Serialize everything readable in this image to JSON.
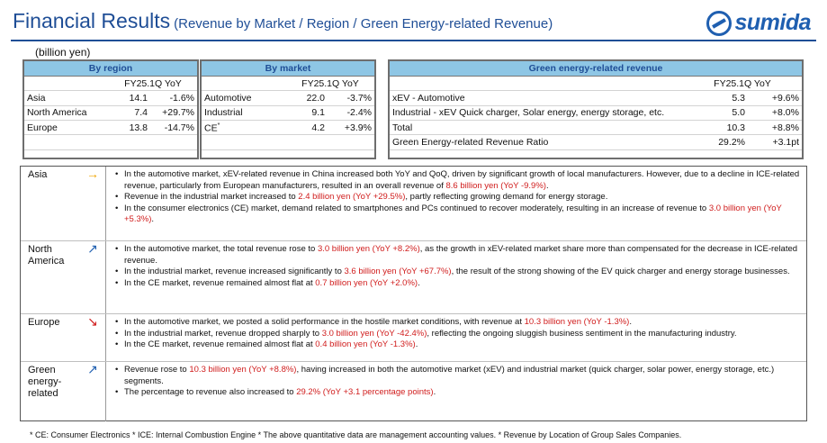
{
  "header": {
    "title": "Financial Results",
    "subtitle": "(Revenue by Market / Region / Green Energy-related Revenue)",
    "logo_text": "sumida"
  },
  "unit": "(billion yen)",
  "region_table": {
    "title": "By region",
    "col_header": "FY25.1Q YoY",
    "rows": [
      {
        "name": "Asia",
        "value": "14.1",
        "yoy": "-1.6%"
      },
      {
        "name": "North America",
        "value": "7.4",
        "yoy": "+29.7%"
      },
      {
        "name": "Europe",
        "value": "13.8",
        "yoy": "-14.7%"
      },
      {
        "name": "",
        "value": "",
        "yoy": ""
      }
    ]
  },
  "market_table": {
    "title": "By market",
    "col_header": "FY25.1Q YoY",
    "rows": [
      {
        "name": "Automotive",
        "value": "22.0",
        "yoy": "-3.7%"
      },
      {
        "name": "Industrial",
        "value": "9.1",
        "yoy": "-2.4%"
      },
      {
        "name": "CE",
        "sup": "*",
        "value": "4.2",
        "yoy": "+3.9%"
      },
      {
        "name": "",
        "value": "",
        "yoy": ""
      }
    ]
  },
  "green_table": {
    "title": "Green energy-related revenue",
    "col_header": "FY25.1Q YoY",
    "rows": [
      {
        "name": "xEV - Automotive",
        "value": "5.3",
        "yoy": "+9.6%"
      },
      {
        "name": "Industrial - xEV Quick charger, Solar energy, energy storage, etc.",
        "value": "5.0",
        "yoy": "+8.0%"
      },
      {
        "name": "Total",
        "value": "10.3",
        "yoy": "+8.8%"
      },
      {
        "name": "Green Energy-related Revenue Ratio",
        "value": "29.2%",
        "yoy": "+3.1pt"
      }
    ]
  },
  "details": [
    {
      "label": "Asia",
      "arrow": "→",
      "arrow_color": "#f0a500",
      "bullets": [
        {
          "pre": "In the automotive market, xEV-related revenue in China increased both YoY and QoQ, driven by significant growth of local manufacturers. However, due to a decline in ICE-related revenue, particularly from European manufacturers, resulted in an overall revenue of ",
          "hl": "8.6 billion yen (YoY -9.9%)",
          "post": "."
        },
        {
          "pre": "Revenue in the industrial market increased to ",
          "hl": "2.4 billion yen (YoY +29.5%)",
          "post": ", partly reflecting growing demand for energy storage."
        },
        {
          "pre": "In the consumer electronics (CE) market, demand related to smartphones and PCs continued to recover moderately, resulting in an increase of revenue to ",
          "hl": "3.0 billion yen (YoY +5.3%)",
          "post": "."
        }
      ]
    },
    {
      "label": "North America",
      "arrow": "↗",
      "arrow_color": "#1f5fb0",
      "bullets": [
        {
          "pre": "In the automotive market, the total revenue rose to ",
          "hl": "3.0 billion yen (YoY +8.2%)",
          "post": ", as the growth in xEV-related market share more than compensated for the decrease in ICE-related revenue."
        },
        {
          "pre": "In the industrial market, revenue increased significantly to ",
          "hl": "3.6 billion yen (YoY +67.7%)",
          "post": ", the result of the strong showing of the EV quick charger and energy storage businesses."
        },
        {
          "pre": "In the CE market, revenue remained almost flat at ",
          "hl": "0.7 billion yen (YoY +2.0%)",
          "post": "."
        }
      ]
    },
    {
      "label": "Europe",
      "arrow": "↘",
      "arrow_color": "#d01c1c",
      "bullets": [
        {
          "pre": "In the automotive market, we posted a solid performance in the hostile market conditions, with revenue at ",
          "hl": "10.3 billion yen (YoY -1.3%)",
          "post": "."
        },
        {
          "pre": "In the industrial market, revenue dropped sharply to ",
          "hl": "3.0 billion yen (YoY -42.4%)",
          "post": ", reflecting the ongoing sluggish business sentiment in the manufacturing industry."
        },
        {
          "pre": "In the CE market, revenue remained almost flat at ",
          "hl": "0.4 billion yen (YoY -1.3%)",
          "post": "."
        }
      ]
    },
    {
      "label": "Green energy-related",
      "arrow": "↗",
      "arrow_color": "#1f5fb0",
      "bullets": [
        {
          "pre": "Revenue rose to ",
          "hl": "10.3 billion yen (YoY +8.8%)",
          "post": ", having increased in both the automotive market (xEV) and industrial market (quick charger, solar power, energy storage, etc.) segments."
        },
        {
          "pre": "The percentage to revenue also increased to ",
          "hl": "29.2% (YoY +3.1 percentage points)",
          "post": "."
        }
      ]
    }
  ],
  "footnote": "* CE: Consumer Electronics * ICE: Internal Combustion Engine * The above quantitative data are management accounting values. * Revenue by Location of Group Sales Companies."
}
